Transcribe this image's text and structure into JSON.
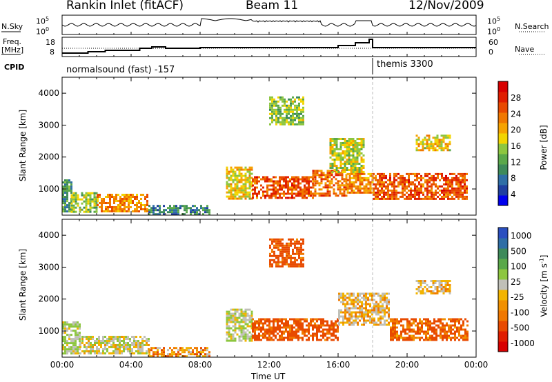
{
  "header": {
    "station": "Rankin Inlet (fitACF)",
    "beam": "Beam 11",
    "date": "12/Nov/2009"
  },
  "strips": {
    "nsky_label": "N.Sky",
    "nsearch_label": "N.Search",
    "noise_ticks": [
      "10^5",
      "10^0"
    ],
    "noise_ticks_right": [
      "10^5",
      "10^0"
    ],
    "freq_label_1": "Freq.",
    "freq_label_2": "[MHz]",
    "freq_ticks": [
      "18",
      "8"
    ],
    "nave_label": "Nave",
    "nave_ticks": [
      "60",
      "0"
    ],
    "cpid_label": "CPID",
    "cpid_left": "normalsound (fast) -157",
    "cpid_right": "themis 3300"
  },
  "chart_data": [
    {
      "type": "heatmap",
      "title": "",
      "ylabel": "Slant Range [km]",
      "colorbar_label": "Power [dB]",
      "colorbar_ticks": [
        "28",
        "24",
        "20",
        "16",
        "12",
        "8",
        "4"
      ],
      "colorbar_colors": [
        "#0000ee",
        "#1f3fa0",
        "#2e6ea6",
        "#3d8a5a",
        "#5aa84a",
        "#8dc63f",
        "#f2d400",
        "#f6a300",
        "#f07800",
        "#e84a00",
        "#e01e00",
        "#d80000"
      ],
      "x_ticks": [
        "00:00",
        "04:00",
        "08:00",
        "12:00",
        "16:00",
        "20:00",
        "00:00"
      ],
      "y_ticks": [
        "4000",
        "3000",
        "2000",
        "1000"
      ],
      "ylim": [
        180,
        4500
      ],
      "xlim_hours": [
        0,
        24
      ],
      "regions": [
        {
          "t0": 0.0,
          "t1": 0.5,
          "r0": 300,
          "r1": 1300,
          "value": 10
        },
        {
          "t0": 0.5,
          "t1": 2.0,
          "r0": 300,
          "r1": 900,
          "value": 14
        },
        {
          "t0": 2.0,
          "t1": 5.0,
          "r0": 300,
          "r1": 850,
          "value": 22
        },
        {
          "t0": 5.0,
          "t1": 8.5,
          "r0": 200,
          "r1": 500,
          "value": 8
        },
        {
          "t0": 9.5,
          "t1": 11.0,
          "r0": 700,
          "r1": 1700,
          "value": 18
        },
        {
          "t0": 11.0,
          "t1": 14.5,
          "r0": 700,
          "r1": 1400,
          "value": 26
        },
        {
          "t0": 14.5,
          "t1": 16.5,
          "r0": 800,
          "r1": 1600,
          "value": 24
        },
        {
          "t0": 16.5,
          "t1": 18.0,
          "r0": 900,
          "r1": 1500,
          "value": 22
        },
        {
          "t0": 18.0,
          "t1": 23.5,
          "r0": 700,
          "r1": 1500,
          "value": 26
        },
        {
          "t0": 12.0,
          "t1": 14.0,
          "r0": 3000,
          "r1": 3900,
          "value": 14
        },
        {
          "t0": 15.5,
          "t1": 17.5,
          "r0": 1500,
          "r1": 2600,
          "value": 16
        },
        {
          "t0": 20.5,
          "t1": 22.5,
          "r0": 2200,
          "r1": 2700,
          "value": 18
        }
      ]
    },
    {
      "type": "heatmap",
      "title": "",
      "xlabel": "Time UT",
      "ylabel": "Slant Range [km]",
      "colorbar_label": "Velocity [m s^-1]",
      "colorbar_ticks": [
        "1000",
        "500",
        "100",
        "25",
        "-25",
        "-100",
        "-500",
        "-1000"
      ],
      "colorbar_colors": [
        "#2a4fc0",
        "#2e6ea6",
        "#3d8a5a",
        "#5aa84a",
        "#8dc63f",
        "#c0c0b8",
        "#f2b400",
        "#f09000",
        "#f07800",
        "#e84a00",
        "#e01e00",
        "#d80000"
      ],
      "x_ticks": [
        "00:00",
        "04:00",
        "08:00",
        "12:00",
        "16:00",
        "20:00",
        "00:00"
      ],
      "y_ticks": [
        "4000",
        "3000",
        "2000",
        "1000"
      ],
      "ylim": [
        180,
        4500
      ],
      "xlim_hours": [
        0,
        24
      ],
      "regions": [
        {
          "t0": 0.0,
          "t1": 1.0,
          "r0": 300,
          "r1": 1300,
          "value": 100
        },
        {
          "t0": 1.0,
          "t1": 5.0,
          "r0": 300,
          "r1": 850,
          "value": 50
        },
        {
          "t0": 5.0,
          "t1": 8.5,
          "r0": 200,
          "r1": 500,
          "value": -50
        },
        {
          "t0": 9.5,
          "t1": 11.0,
          "r0": 700,
          "r1": 1700,
          "value": 80
        },
        {
          "t0": 11.0,
          "t1": 16.0,
          "r0": 700,
          "r1": 1400,
          "value": -150
        },
        {
          "t0": 16.0,
          "t1": 19.0,
          "r0": 1200,
          "r1": 2200,
          "value": 0
        },
        {
          "t0": 19.0,
          "t1": 23.5,
          "r0": 700,
          "r1": 1400,
          "value": -120
        },
        {
          "t0": 12.0,
          "t1": 14.0,
          "r0": 3000,
          "r1": 3900,
          "value": -150
        },
        {
          "t0": 20.5,
          "t1": 22.5,
          "r0": 2200,
          "r1": 2600,
          "value": 0
        }
      ]
    }
  ]
}
